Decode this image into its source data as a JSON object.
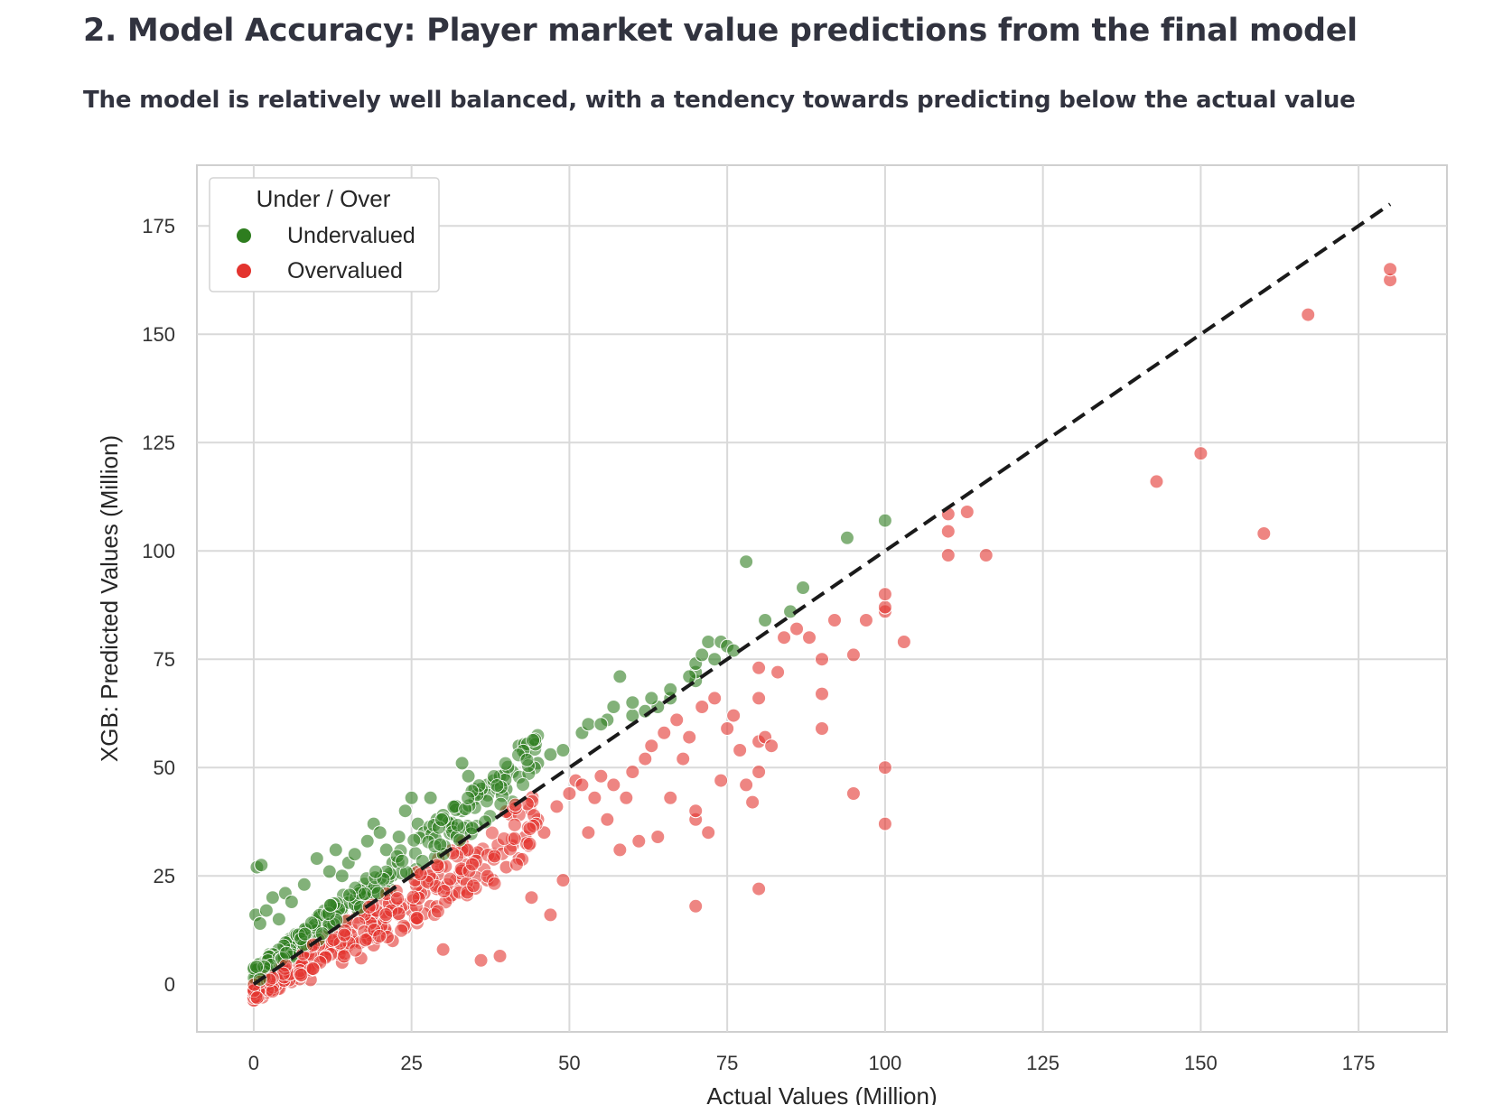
{
  "header": {
    "title": "2. Model Accuracy: Player market value predictions from the final model",
    "subtitle": "The model is relatively well balanced, with a tendency towards predicting below the actual value"
  },
  "chart_data": {
    "type": "scatter",
    "xlabel": "Actual Values (Million)",
    "ylabel": "XGB: Predicted Values (Million)",
    "xlim": [
      -9,
      189
    ],
    "ylim": [
      -11,
      189
    ],
    "xticks": [
      0,
      25,
      50,
      75,
      100,
      125,
      150,
      175
    ],
    "yticks": [
      0,
      25,
      50,
      75,
      100,
      125,
      150,
      175
    ],
    "grid": true,
    "legend": {
      "title": "Under / Over",
      "placement": "top-left",
      "entries": [
        {
          "label": "Undervalued",
          "color": "#2e7d1f"
        },
        {
          "label": "Overvalued",
          "color": "#e3342f"
        }
      ]
    },
    "reference_line": {
      "from": [
        0,
        0
      ],
      "to": [
        180,
        180
      ],
      "style": "dashed",
      "color": "#1a1a1a"
    },
    "series": [
      {
        "name": "Undervalued",
        "color": "#2e7d1f",
        "points": [
          [
            0.5,
            27
          ],
          [
            1.2,
            27.5
          ],
          [
            0.3,
            16
          ],
          [
            1,
            14
          ],
          [
            2,
            17
          ],
          [
            3,
            20
          ],
          [
            4,
            15
          ],
          [
            5,
            21
          ],
          [
            6,
            19
          ],
          [
            8,
            23
          ],
          [
            10,
            29
          ],
          [
            12,
            26
          ],
          [
            13,
            31
          ],
          [
            14,
            25
          ],
          [
            15,
            28
          ],
          [
            16,
            30
          ],
          [
            18,
            33
          ],
          [
            19,
            37
          ],
          [
            20,
            35
          ],
          [
            21,
            31
          ],
          [
            22,
            28
          ],
          [
            23,
            34
          ],
          [
            24,
            40
          ],
          [
            25,
            43
          ],
          [
            26,
            37
          ],
          [
            27,
            35
          ],
          [
            28,
            43
          ],
          [
            29,
            38
          ],
          [
            30,
            39
          ],
          [
            31,
            37
          ],
          [
            32,
            41
          ],
          [
            33,
            40
          ],
          [
            33,
            51
          ],
          [
            34,
            48
          ],
          [
            35,
            45
          ],
          [
            36,
            44
          ],
          [
            37,
            46
          ],
          [
            38,
            47
          ],
          [
            39,
            48
          ],
          [
            40,
            45
          ],
          [
            41,
            49
          ],
          [
            42,
            55
          ],
          [
            43,
            53
          ],
          [
            45,
            51
          ],
          [
            47,
            53
          ],
          [
            49,
            54
          ],
          [
            52,
            58
          ],
          [
            53,
            60
          ],
          [
            56,
            61
          ],
          [
            57,
            64
          ],
          [
            58,
            71
          ],
          [
            60,
            62
          ],
          [
            60,
            65
          ],
          [
            62,
            63
          ],
          [
            64,
            64
          ],
          [
            66,
            66
          ],
          [
            66,
            68
          ],
          [
            70,
            70
          ],
          [
            70,
            72
          ],
          [
            70,
            74
          ],
          [
            72,
            79
          ],
          [
            73,
            75
          ],
          [
            74,
            79
          ],
          [
            75,
            78
          ],
          [
            76,
            77
          ],
          [
            78,
            97.5
          ],
          [
            81,
            84
          ],
          [
            85,
            86
          ],
          [
            87,
            91.5
          ],
          [
            94,
            103
          ],
          [
            100,
            107
          ],
          [
            69,
            71
          ],
          [
            71,
            76
          ],
          [
            63,
            66
          ],
          [
            55,
            60
          ]
        ]
      },
      {
        "name": "Overvalued",
        "color": "#e3342f",
        "points": [
          [
            0,
            -1
          ],
          [
            0.5,
            -1
          ],
          [
            1,
            0
          ],
          [
            2,
            0
          ],
          [
            3,
            1
          ],
          [
            4,
            2
          ],
          [
            5,
            1
          ],
          [
            6,
            3
          ],
          [
            8,
            4
          ],
          [
            9,
            1
          ],
          [
            10,
            5
          ],
          [
            11,
            7
          ],
          [
            12,
            8
          ],
          [
            14,
            5
          ],
          [
            15,
            9
          ],
          [
            16,
            10
          ],
          [
            17,
            6
          ],
          [
            18,
            11
          ],
          [
            19,
            9
          ],
          [
            20,
            14
          ],
          [
            21,
            12
          ],
          [
            22,
            10
          ],
          [
            23,
            16
          ],
          [
            24,
            13
          ],
          [
            25,
            17
          ],
          [
            26,
            15
          ],
          [
            27,
            21
          ],
          [
            28,
            18
          ],
          [
            29,
            22
          ],
          [
            30,
            8
          ],
          [
            31,
            20
          ],
          [
            32,
            24
          ],
          [
            33,
            26
          ],
          [
            34,
            22
          ],
          [
            35,
            28
          ],
          [
            36,
            5.5
          ],
          [
            37,
            24
          ],
          [
            38,
            30
          ],
          [
            39,
            6.5
          ],
          [
            40,
            27
          ],
          [
            41,
            32
          ],
          [
            42,
            29
          ],
          [
            43,
            34
          ],
          [
            44,
            20
          ],
          [
            45,
            38
          ],
          [
            46,
            35
          ],
          [
            47,
            16
          ],
          [
            48,
            41
          ],
          [
            49,
            24
          ],
          [
            50,
            44
          ],
          [
            51,
            47
          ],
          [
            52,
            46
          ],
          [
            53,
            35
          ],
          [
            54,
            43
          ],
          [
            55,
            48
          ],
          [
            56,
            38
          ],
          [
            57,
            46
          ],
          [
            58,
            31
          ],
          [
            59,
            43
          ],
          [
            60,
            49
          ],
          [
            61,
            33
          ],
          [
            62,
            52
          ],
          [
            63,
            55
          ],
          [
            64,
            34
          ],
          [
            65,
            58
          ],
          [
            66,
            43
          ],
          [
            67,
            61
          ],
          [
            68,
            52
          ],
          [
            69,
            57
          ],
          [
            70,
            18
          ],
          [
            70,
            38
          ],
          [
            70,
            40
          ],
          [
            71,
            64
          ],
          [
            72,
            35
          ],
          [
            73,
            66
          ],
          [
            74,
            47
          ],
          [
            75,
            59
          ],
          [
            76,
            62
          ],
          [
            77,
            54
          ],
          [
            78,
            46
          ],
          [
            79,
            42
          ],
          [
            80,
            22
          ],
          [
            80,
            49
          ],
          [
            80,
            56
          ],
          [
            80,
            66
          ],
          [
            80,
            73
          ],
          [
            81,
            57
          ],
          [
            82,
            55
          ],
          [
            83,
            72
          ],
          [
            84,
            80
          ],
          [
            86,
            82
          ],
          [
            88,
            80
          ],
          [
            90,
            59
          ],
          [
            90,
            67
          ],
          [
            90,
            75
          ],
          [
            92,
            84
          ],
          [
            95,
            44
          ],
          [
            95,
            76
          ],
          [
            97,
            84
          ],
          [
            100,
            37
          ],
          [
            100,
            50
          ],
          [
            100,
            86
          ],
          [
            100,
            87
          ],
          [
            100,
            90
          ],
          [
            103,
            79
          ],
          [
            110,
            99
          ],
          [
            110,
            104.5
          ],
          [
            110,
            108.5
          ],
          [
            113,
            109
          ],
          [
            116,
            99
          ],
          [
            143,
            116
          ],
          [
            150,
            122.5
          ],
          [
            160,
            104
          ],
          [
            167,
            154.5
          ],
          [
            180,
            162.5
          ],
          [
            180,
            165
          ]
        ]
      }
    ]
  }
}
